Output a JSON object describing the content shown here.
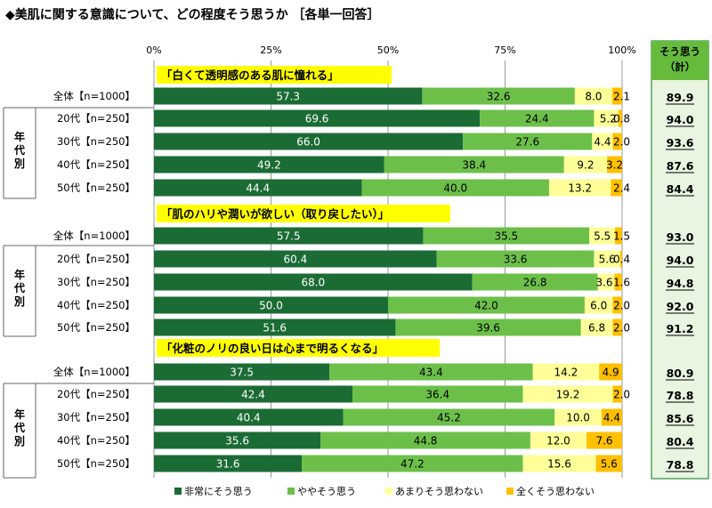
{
  "title": "◆美肌に関する意識について、どの程度そう思うか ［各単一回答］",
  "colors": {
    "c1": "#1b6b35",
    "c2": "#6cc04a",
    "c3": "#ffff99",
    "c4": "#ffc000",
    "question_bg": "#ffff00",
    "total_box_bg": "#e8f5e0",
    "total_box_border": "#2e8b3a",
    "total_header_bg": "#66bb3c",
    "grid": "#999999"
  },
  "chart_data": {
    "type": "bar",
    "stacked": true,
    "orientation": "horizontal",
    "xlim": [
      0,
      100
    ],
    "xticks": [
      "0%",
      "25%",
      "50%",
      "75%",
      "100%"
    ],
    "legend_position": "bottom",
    "series": [
      {
        "name": "非常にそう思う",
        "color_key": "c1"
      },
      {
        "name": "ややそう思う",
        "color_key": "c2"
      },
      {
        "name": "あまりそう思わない",
        "color_key": "c3"
      },
      {
        "name": "全くそう思わない",
        "color_key": "c4"
      }
    ],
    "total_header": [
      "そう思う",
      "（計）"
    ],
    "group_label": "年代別",
    "questions": [
      {
        "label": "「白くて透明感のある肌に憧れる」",
        "rows": [
          {
            "label": "全体【n=1000】",
            "values": [
              57.3,
              32.6,
              8.0,
              2.1
            ],
            "total": "89.9"
          },
          {
            "label": "20代【n=250】",
            "values": [
              69.6,
              24.4,
              5.2,
              0.8
            ],
            "total": "94.0"
          },
          {
            "label": "30代【n=250】",
            "values": [
              66.0,
              27.6,
              4.4,
              2.0
            ],
            "total": "93.6"
          },
          {
            "label": "40代【n=250】",
            "values": [
              49.2,
              38.4,
              9.2,
              3.2
            ],
            "total": "87.6"
          },
          {
            "label": "50代【n=250】",
            "values": [
              44.4,
              40.0,
              13.2,
              2.4
            ],
            "total": "84.4"
          }
        ]
      },
      {
        "label": "「肌のハリや潤いが欲しい（取り戻したい）」",
        "rows": [
          {
            "label": "全体【n=1000】",
            "values": [
              57.5,
              35.5,
              5.5,
              1.5
            ],
            "total": "93.0"
          },
          {
            "label": "20代【n=250】",
            "values": [
              60.4,
              33.6,
              5.6,
              0.4
            ],
            "total": "94.0"
          },
          {
            "label": "30代【n=250】",
            "values": [
              68.0,
              26.8,
              3.6,
              1.6
            ],
            "total": "94.8"
          },
          {
            "label": "40代【n=250】",
            "values": [
              50.0,
              42.0,
              6.0,
              2.0
            ],
            "total": "92.0"
          },
          {
            "label": "50代【n=250】",
            "values": [
              51.6,
              39.6,
              6.8,
              2.0
            ],
            "total": "91.2"
          }
        ]
      },
      {
        "label": "「化粧のノリの良い日は心まで明るくなる」",
        "rows": [
          {
            "label": "全体【n=1000】",
            "values": [
              37.5,
              43.4,
              14.2,
              4.9
            ],
            "total": "80.9"
          },
          {
            "label": "20代【n=250】",
            "values": [
              42.4,
              36.4,
              19.2,
              2.0
            ],
            "total": "78.8"
          },
          {
            "label": "30代【n=250】",
            "values": [
              40.4,
              45.2,
              10.0,
              4.4
            ],
            "total": "85.6"
          },
          {
            "label": "40代【n=250】",
            "values": [
              35.6,
              44.8,
              12.0,
              7.6
            ],
            "total": "80.4"
          },
          {
            "label": "50代【n=250】",
            "values": [
              31.6,
              47.2,
              15.6,
              5.6
            ],
            "total": "78.8"
          }
        ]
      }
    ]
  }
}
